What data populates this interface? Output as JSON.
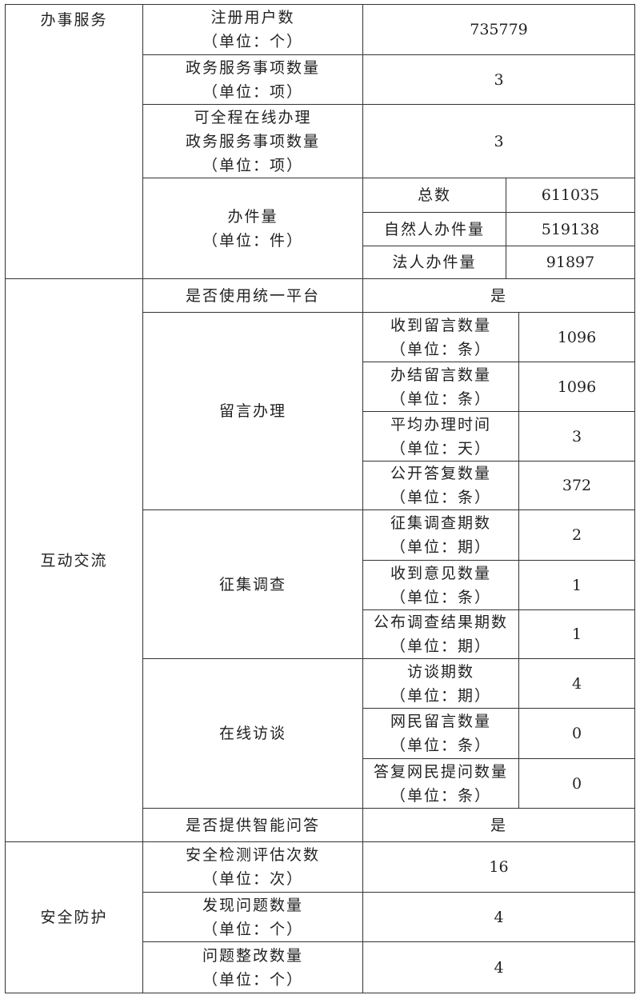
{
  "sections": [
    {
      "label": "办事服务",
      "registered_users": {
        "label": "注册用户数\n（单位：个）",
        "value": "735779"
      },
      "service_items": {
        "label": "政务服务事项数量\n（单位：项）",
        "value": "3"
      },
      "online_items": {
        "label": "可全程在线办理\n政务服务事项数量\n（单位：项）",
        "value": "3"
      },
      "cases": {
        "label": "办件量\n（单位：件）",
        "rows": [
          {
            "label": "总数",
            "value": "611035"
          },
          {
            "label": "自然人办件量",
            "value": "519138"
          },
          {
            "label": "法人办件量",
            "value": "91897"
          }
        ]
      }
    },
    {
      "label": "互动交流",
      "unified_platform": {
        "label": "是否使用统一平台",
        "value": "是"
      },
      "messages": {
        "label": "留言办理",
        "rows": [
          {
            "label": "收到留言数量\n（单位：条）",
            "value": "1096"
          },
          {
            "label": "办结留言数量\n（单位：条）",
            "value": "1096"
          },
          {
            "label": "平均办理时间\n（单位：天）",
            "value": "3"
          },
          {
            "label": "公开答复数量\n（单位：条）",
            "value": "372"
          }
        ]
      },
      "surveys": {
        "label": "征集调查",
        "rows": [
          {
            "label": "征集调查期数\n（单位：期）",
            "value": "2"
          },
          {
            "label": "收到意见数量\n（单位：条）",
            "value": "1"
          },
          {
            "label": "公布调查结果期数\n（单位：期）",
            "value": "1"
          }
        ]
      },
      "interviews": {
        "label": "在线访谈",
        "rows": [
          {
            "label": "访谈期数\n（单位：期）",
            "value": "4"
          },
          {
            "label": "网民留言数量\n（单位：条）",
            "value": "0"
          },
          {
            "label": "答复网民提问数量\n（单位：条）",
            "value": "0"
          }
        ]
      },
      "smart_qa": {
        "label": "是否提供智能问答",
        "value": "是"
      }
    },
    {
      "label": "安全防护",
      "rows": [
        {
          "label": "安全检测评估次数\n（单位：次）",
          "value": "16"
        },
        {
          "label": "发现问题数量\n（单位：个）",
          "value": "4"
        },
        {
          "label": "问题整改数量\n（单位：个）",
          "value": "4"
        }
      ]
    }
  ]
}
